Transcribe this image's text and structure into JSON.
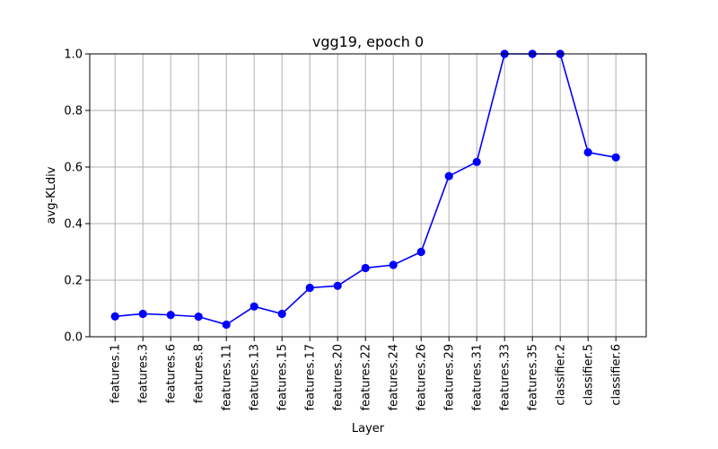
{
  "chart_data": {
    "type": "line",
    "title": "vgg19, epoch 0",
    "xlabel": "Layer",
    "ylabel": "avg-KLdiv",
    "categories": [
      "features.1",
      "features.3",
      "features.6",
      "features.8",
      "features.11",
      "features.13",
      "features.15",
      "features.17",
      "features.20",
      "features.22",
      "features.24",
      "features.26",
      "features.29",
      "features.31",
      "features.33",
      "features.35",
      "classifier.2",
      "classifier.5",
      "classifier.6"
    ],
    "series": [
      {
        "values": [
          0.072,
          0.081,
          0.077,
          0.071,
          0.043,
          0.107,
          0.081,
          0.173,
          0.18,
          0.243,
          0.254,
          0.3,
          0.568,
          0.618,
          1.0,
          1.0,
          1.0,
          0.652,
          0.634
        ],
        "color": "#0000ff",
        "marker": "circle"
      }
    ],
    "ylim": [
      0,
      1.0
    ],
    "yticks": [
      0.0,
      0.2,
      0.4,
      0.6,
      0.8,
      1.0
    ],
    "ytick_labels": [
      "0.0",
      "0.2",
      "0.4",
      "0.6",
      "0.8",
      "1.0"
    ],
    "grid": true,
    "grid_color": "#b0b0b0"
  }
}
